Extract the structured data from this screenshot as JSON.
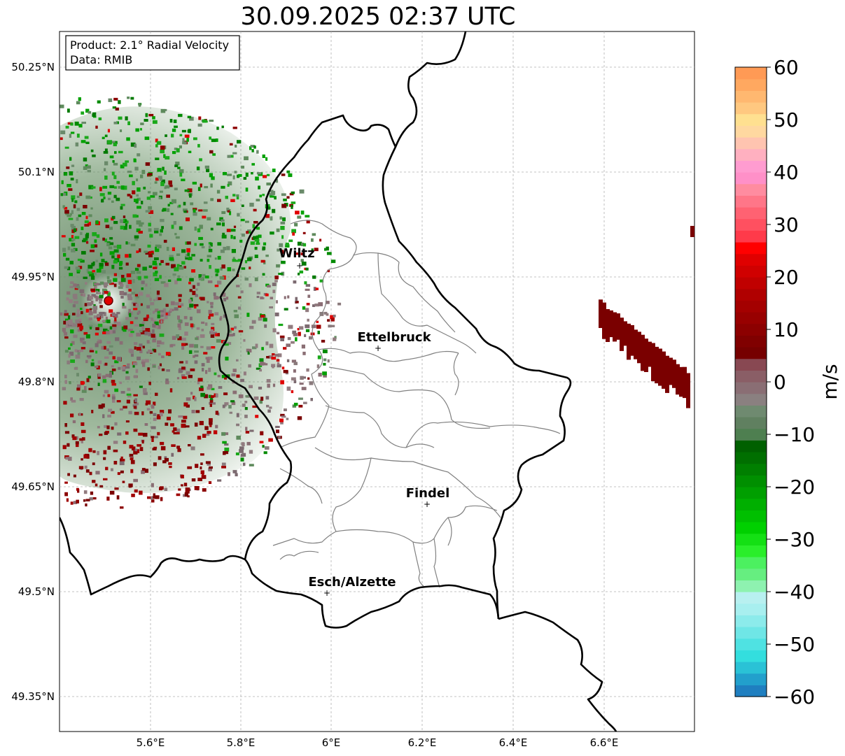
{
  "title": "30.09.2025 02:37 UTC",
  "info_box": {
    "product_line": "Product: 2.1° Radial Velocity",
    "data_line": "Data: RMIB"
  },
  "axes": {
    "lon_ticks": [
      "5.6°E",
      "5.8°E",
      "6°E",
      "6.2°E",
      "6.4°E",
      "6.6°E"
    ],
    "lat_ticks": [
      "50.25°N",
      "50.1°N",
      "49.95°N",
      "49.8°N",
      "49.65°N",
      "49.5°N",
      "49.35°N"
    ]
  },
  "cities": [
    {
      "name": "Wiltz"
    },
    {
      "name": "Ettelbruck"
    },
    {
      "name": "Findel"
    },
    {
      "name": "Esch/Alzette"
    }
  ],
  "colorbar": {
    "label": "m/s",
    "ticks": [
      "60",
      "50",
      "40",
      "30",
      "20",
      "10",
      "0",
      "−10",
      "−20",
      "−30",
      "−40",
      "−50",
      "−60"
    ],
    "min": -60,
    "max": 60,
    "colors": [
      "#1f7fc0",
      "#22a0cc",
      "#2ac2d6",
      "#33dede",
      "#4fe2e2",
      "#6fe6e6",
      "#8cebeb",
      "#a8efef",
      "#b8f0f0",
      "#8ef2b0",
      "#66ee80",
      "#4cf060",
      "#2aee2a",
      "#14e014",
      "#00d000",
      "#00bf00",
      "#00af00",
      "#009f00",
      "#008f00",
      "#007f00",
      "#006f00",
      "#006000",
      "#4e7f50",
      "#608060",
      "#6f8a70",
      "#8a8080",
      "#8a6e74",
      "#8a5e66",
      "#884852",
      "#760000",
      "#800000",
      "#8c0000",
      "#980000",
      "#a40000",
      "#b00000",
      "#c00000",
      "#d00000",
      "#e00000",
      "#ff0000",
      "#ff3a4a",
      "#ff5060",
      "#ff6272",
      "#ff7688",
      "#ff8ca0",
      "#ff90c8",
      "#ff9cd0",
      "#ffb0c0",
      "#ffc4b0",
      "#ffd8a0",
      "#ffe090",
      "#ffc880",
      "#ffb870",
      "#ffa860",
      "#ff9a55"
    ]
  },
  "radar_site": {
    "color": "#e00000"
  }
}
